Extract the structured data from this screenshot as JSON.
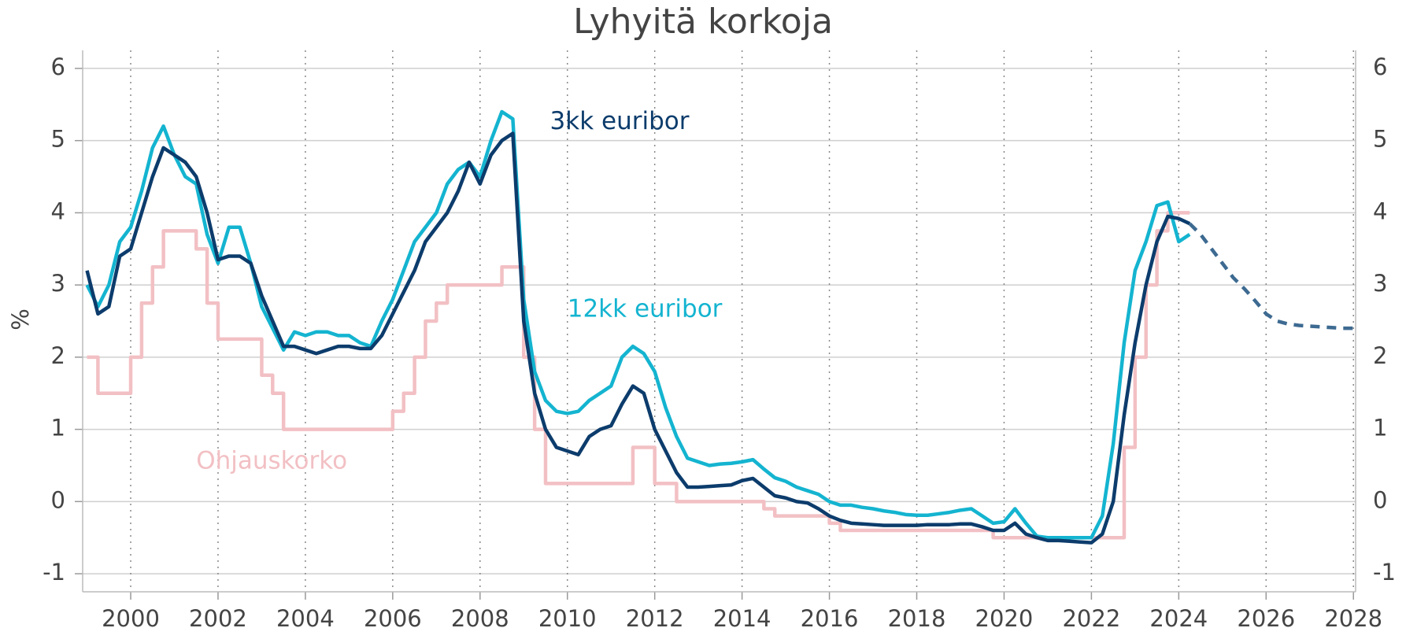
{
  "chart_data": {
    "type": "line",
    "title": "Lyhyitä korkoja",
    "y_label": "%",
    "xlim": [
      1998.9,
      2028.05
    ],
    "xticks": [
      2000,
      2002,
      2004,
      2006,
      2008,
      2010,
      2012,
      2014,
      2016,
      2018,
      2020,
      2022,
      2024,
      2026,
      2028
    ],
    "ylim": [
      -1.25,
      6.25
    ],
    "yticks": [
      -1,
      0,
      1,
      2,
      3,
      4,
      5,
      6
    ],
    "grid": true,
    "right_axis_labels": true,
    "x": [
      1999,
      1999.25,
      1999.5,
      1999.75,
      2000,
      2000.25,
      2000.5,
      2000.75,
      2001,
      2001.25,
      2001.5,
      2001.75,
      2002,
      2002.25,
      2002.5,
      2002.75,
      2003,
      2003.25,
      2003.5,
      2003.75,
      2004,
      2004.25,
      2004.5,
      2004.75,
      2005,
      2005.25,
      2005.5,
      2005.75,
      2006,
      2006.25,
      2006.5,
      2006.75,
      2007,
      2007.25,
      2007.5,
      2007.75,
      2008,
      2008.25,
      2008.5,
      2008.75,
      2009,
      2009.25,
      2009.5,
      2009.75,
      2010,
      2010.25,
      2010.5,
      2010.75,
      2011,
      2011.25,
      2011.5,
      2011.75,
      2012,
      2012.25,
      2012.5,
      2012.75,
      2013,
      2013.25,
      2013.5,
      2013.75,
      2014,
      2014.25,
      2014.5,
      2014.75,
      2015,
      2015.25,
      2015.5,
      2015.75,
      2016,
      2016.25,
      2016.5,
      2016.75,
      2017,
      2017.25,
      2017.5,
      2017.75,
      2018,
      2018.25,
      2018.5,
      2018.75,
      2019,
      2019.25,
      2019.5,
      2019.75,
      2020,
      2020.25,
      2020.5,
      2020.75,
      2021,
      2021.25,
      2021.5,
      2021.75,
      2022,
      2022.25,
      2022.5,
      2022.75,
      2023,
      2023.25,
      2023.5,
      2023.75,
      2024,
      2024.25
    ],
    "series": [
      {
        "name": "Ohjauskorko",
        "color": "#f2c0c4",
        "step": true,
        "values": [
          2.0,
          1.5,
          1.5,
          1.5,
          2.0,
          2.75,
          3.25,
          3.75,
          3.75,
          3.75,
          3.5,
          2.75,
          2.25,
          2.25,
          2.25,
          2.25,
          1.75,
          1.5,
          1.0,
          1.0,
          1,
          1,
          1,
          1,
          1,
          1,
          1,
          1,
          1.25,
          1.5,
          2.0,
          2.5,
          2.75,
          3.0,
          3.0,
          3.0,
          3.0,
          3.0,
          3.25,
          3.25,
          2.0,
          1.0,
          0.25,
          0.25,
          0.25,
          0.25,
          0.25,
          0.25,
          0.25,
          0.25,
          0.75,
          0.75,
          0.25,
          0.25,
          0,
          0,
          0,
          0,
          0,
          0,
          0,
          0,
          -0.1,
          -0.2,
          -0.2,
          -0.2,
          -0.2,
          -0.2,
          -0.3,
          -0.4,
          -0.4,
          -0.4,
          -0.4,
          -0.4,
          -0.4,
          -0.4,
          -0.4,
          -0.4,
          -0.4,
          -0.4,
          -0.4,
          -0.4,
          -0.4,
          -0.5,
          -0.5,
          -0.5,
          -0.5,
          -0.5,
          -0.5,
          -0.5,
          -0.5,
          -0.5,
          -0.5,
          -0.5,
          -0.5,
          0.75,
          2.0,
          3.0,
          3.75,
          4.0,
          4.0,
          4.0
        ]
      },
      {
        "name": "12kk euribor",
        "color": "#14b4d0",
        "values": [
          3.0,
          2.7,
          3.0,
          3.6,
          3.8,
          4.3,
          4.9,
          5.2,
          4.8,
          4.5,
          4.4,
          3.7,
          3.3,
          3.8,
          3.8,
          3.3,
          2.7,
          2.4,
          2.1,
          2.35,
          2.3,
          2.35,
          2.35,
          2.3,
          2.3,
          2.2,
          2.15,
          2.5,
          2.8,
          3.2,
          3.6,
          3.8,
          4.0,
          4.4,
          4.6,
          4.7,
          4.5,
          5.0,
          5.4,
          5.3,
          2.8,
          1.8,
          1.4,
          1.25,
          1.22,
          1.25,
          1.4,
          1.5,
          1.6,
          2.0,
          2.15,
          2.05,
          1.8,
          1.3,
          0.9,
          0.6,
          0.55,
          0.5,
          0.52,
          0.53,
          0.55,
          0.58,
          0.45,
          0.33,
          0.28,
          0.2,
          0.15,
          0.1,
          0.0,
          -0.05,
          -0.05,
          -0.08,
          -0.1,
          -0.13,
          -0.15,
          -0.18,
          -0.19,
          -0.19,
          -0.17,
          -0.15,
          -0.12,
          -0.1,
          -0.2,
          -0.3,
          -0.28,
          -0.1,
          -0.3,
          -0.48,
          -0.5,
          -0.5,
          -0.5,
          -0.5,
          -0.5,
          -0.2,
          0.8,
          2.2,
          3.2,
          3.6,
          4.1,
          4.15,
          3.6,
          3.7
        ]
      },
      {
        "name": "3kk euribor",
        "color": "#0c3c6c",
        "values": [
          3.2,
          2.6,
          2.7,
          3.4,
          3.5,
          4.0,
          4.5,
          4.9,
          4.8,
          4.7,
          4.5,
          4.0,
          3.35,
          3.4,
          3.4,
          3.3,
          2.85,
          2.5,
          2.15,
          2.15,
          2.1,
          2.05,
          2.1,
          2.15,
          2.15,
          2.12,
          2.12,
          2.3,
          2.6,
          2.9,
          3.2,
          3.6,
          3.8,
          4.0,
          4.3,
          4.7,
          4.4,
          4.8,
          5.0,
          5.1,
          2.5,
          1.5,
          1.0,
          0.75,
          0.7,
          0.65,
          0.9,
          1.0,
          1.05,
          1.35,
          1.6,
          1.5,
          1.0,
          0.7,
          0.4,
          0.2,
          0.2,
          0.21,
          0.22,
          0.23,
          0.29,
          0.32,
          0.2,
          0.08,
          0.05,
          0.0,
          -0.02,
          -0.1,
          -0.2,
          -0.26,
          -0.3,
          -0.31,
          -0.32,
          -0.33,
          -0.33,
          -0.33,
          -0.33,
          -0.32,
          -0.32,
          -0.32,
          -0.31,
          -0.31,
          -0.35,
          -0.4,
          -0.4,
          -0.3,
          -0.45,
          -0.5,
          -0.54,
          -0.54,
          -0.55,
          -0.56,
          -0.57,
          -0.45,
          0.0,
          1.2,
          2.2,
          3.0,
          3.6,
          3.95,
          3.92,
          3.85
        ]
      },
      {
        "color": "#3d6a91",
        "dashed": true,
        "x": [
          2024.25,
          2024.5,
          2024.75,
          2025,
          2025.25,
          2025.5,
          2025.75,
          2026,
          2026.25,
          2026.5,
          2026.75,
          2027,
          2027.25,
          2027.5,
          2027.75,
          2028
        ],
        "values": [
          3.85,
          3.7,
          3.5,
          3.3,
          3.1,
          2.95,
          2.78,
          2.6,
          2.5,
          2.46,
          2.44,
          2.43,
          2.42,
          2.41,
          2.4,
          2.4
        ]
      }
    ]
  }
}
